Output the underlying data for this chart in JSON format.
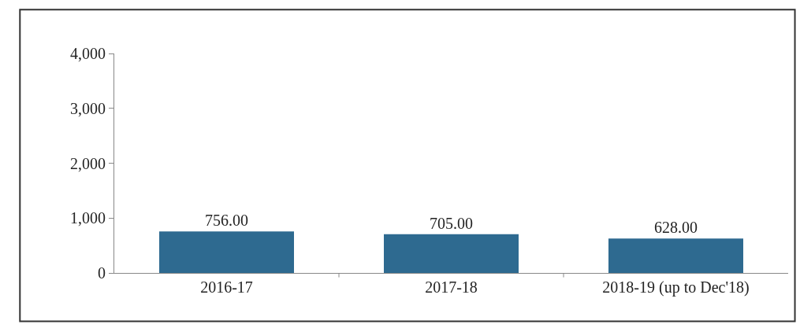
{
  "chart_data": {
    "type": "bar",
    "categories": [
      "2016-17",
      "2017-18",
      "2018-19 (up to Dec'18)"
    ],
    "values": [
      756,
      705,
      628
    ],
    "value_labels": [
      "756.00",
      "705.00",
      "628.00"
    ],
    "color": "#2e6a90",
    "ylim": [
      0,
      4000
    ],
    "yticks": [
      {
        "value": 0,
        "label": "0"
      },
      {
        "value": 1000,
        "label": "1,000"
      },
      {
        "value": 2000,
        "label": "2,000"
      },
      {
        "value": 3000,
        "label": "3,000"
      },
      {
        "value": 4000,
        "label": "4,000"
      }
    ],
    "legend": false
  }
}
